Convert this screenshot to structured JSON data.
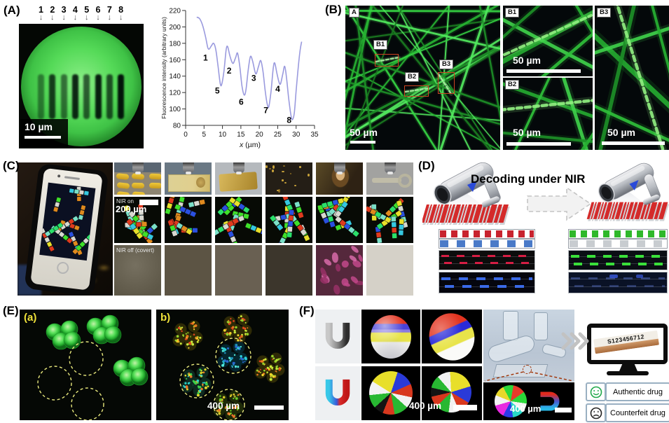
{
  "chart_data": {
    "type": "line",
    "title": "",
    "xlabel": "x (µm)",
    "ylabel": "Fluorescence intensity (arbitrary units)",
    "xlim": [
      0,
      35
    ],
    "ylim": [
      80,
      220
    ],
    "xticks": [
      0,
      5,
      10,
      15,
      20,
      25,
      30,
      35
    ],
    "yticks": [
      80,
      100,
      120,
      140,
      160,
      180,
      200,
      220
    ],
    "grid": false,
    "legend": "none",
    "line_color": "#9a9ade",
    "x": [
      3,
      3.8,
      4.6,
      5.4,
      6.0,
      6.4,
      7.0,
      7.6,
      8.2,
      8.8,
      9.4,
      9.8,
      10.4,
      11.0,
      11.4,
      12.0,
      12.6,
      13.0,
      13.6,
      14.1,
      14.7,
      15.3,
      15.9,
      16.4,
      17.0,
      17.6,
      18.2,
      18.8,
      19.2,
      19.8,
      20.4,
      21.0,
      21.6,
      22.2,
      22.6,
      23.2,
      23.8,
      24.2,
      24.8,
      25.4,
      25.8,
      26.4,
      26.9,
      27.4,
      28.0,
      28.6,
      29.0,
      29.5,
      30.0,
      30.6,
      31.1,
      31.5
    ],
    "y": [
      212,
      210,
      202,
      188,
      175,
      173,
      177,
      180,
      172,
      152,
      131,
      130,
      146,
      172,
      176,
      165,
      157,
      156,
      163,
      168,
      152,
      128,
      117,
      124,
      148,
      164,
      158,
      146,
      143,
      152,
      159,
      146,
      122,
      105,
      103,
      122,
      150,
      156,
      143,
      132,
      131,
      143,
      152,
      138,
      112,
      92,
      87,
      95,
      122,
      152,
      172,
      182
    ],
    "point_labels": [
      {
        "text": "1",
        "x": 5.4,
        "y": 159
      },
      {
        "text": "5",
        "x": 8.6,
        "y": 119
      },
      {
        "text": "2",
        "x": 11.8,
        "y": 143
      },
      {
        "text": "6",
        "x": 15.1,
        "y": 105
      },
      {
        "text": "3",
        "x": 18.5,
        "y": 134
      },
      {
        "text": "7",
        "x": 21.8,
        "y": 95
      },
      {
        "text": "4",
        "x": 25.0,
        "y": 121
      },
      {
        "text": "8",
        "x": 28.1,
        "y": 83
      }
    ]
  },
  "panels": {
    "A": {
      "label": "(A)",
      "arrow_numbers": [
        "1",
        "2",
        "3",
        "4",
        "5",
        "6",
        "7",
        "8"
      ],
      "scale_bar": "10 µm"
    },
    "B": {
      "label": "(B)",
      "main_label": "A",
      "main_scale_bar": "50 µm",
      "inset_labels": [
        "B1",
        "B2",
        "B3"
      ],
      "sub_panels": [
        {
          "label": "B1",
          "scale_bar": "50 µm"
        },
        {
          "label": "B2",
          "scale_bar": "50 µm"
        },
        {
          "label": "B3",
          "scale_bar": "50 µm"
        }
      ]
    },
    "C": {
      "label": "(C)",
      "row2_tag": "NIR on",
      "row2_scale": "200 µm",
      "row3_tag": "NIR off (covert)"
    },
    "D": {
      "label": "(D)",
      "title": "Decoding under NIR"
    },
    "E": {
      "label": "(E)",
      "sub_a_label": "(a)",
      "sub_b_label": "b)",
      "scale_bar": "400 µm"
    },
    "F": {
      "label": "(F)",
      "grid_scale_bar": "400 µm",
      "inset_scale_bar": "400 µm",
      "monitor_code": "S123456712",
      "authentic_label": "Authentic drug",
      "counterfeit_label": "Counterfeit drug"
    }
  },
  "colors": {
    "fluorescent_green": "#2fd33c",
    "chart_line": "#9a9ade",
    "barcode_red": "#c8232e",
    "barcode_blue": "#4a7ac8",
    "barcode_green": "#2fb82a",
    "authentic_green": "#1fa84a",
    "dashed_circle_yellow": "#e8e87c"
  }
}
